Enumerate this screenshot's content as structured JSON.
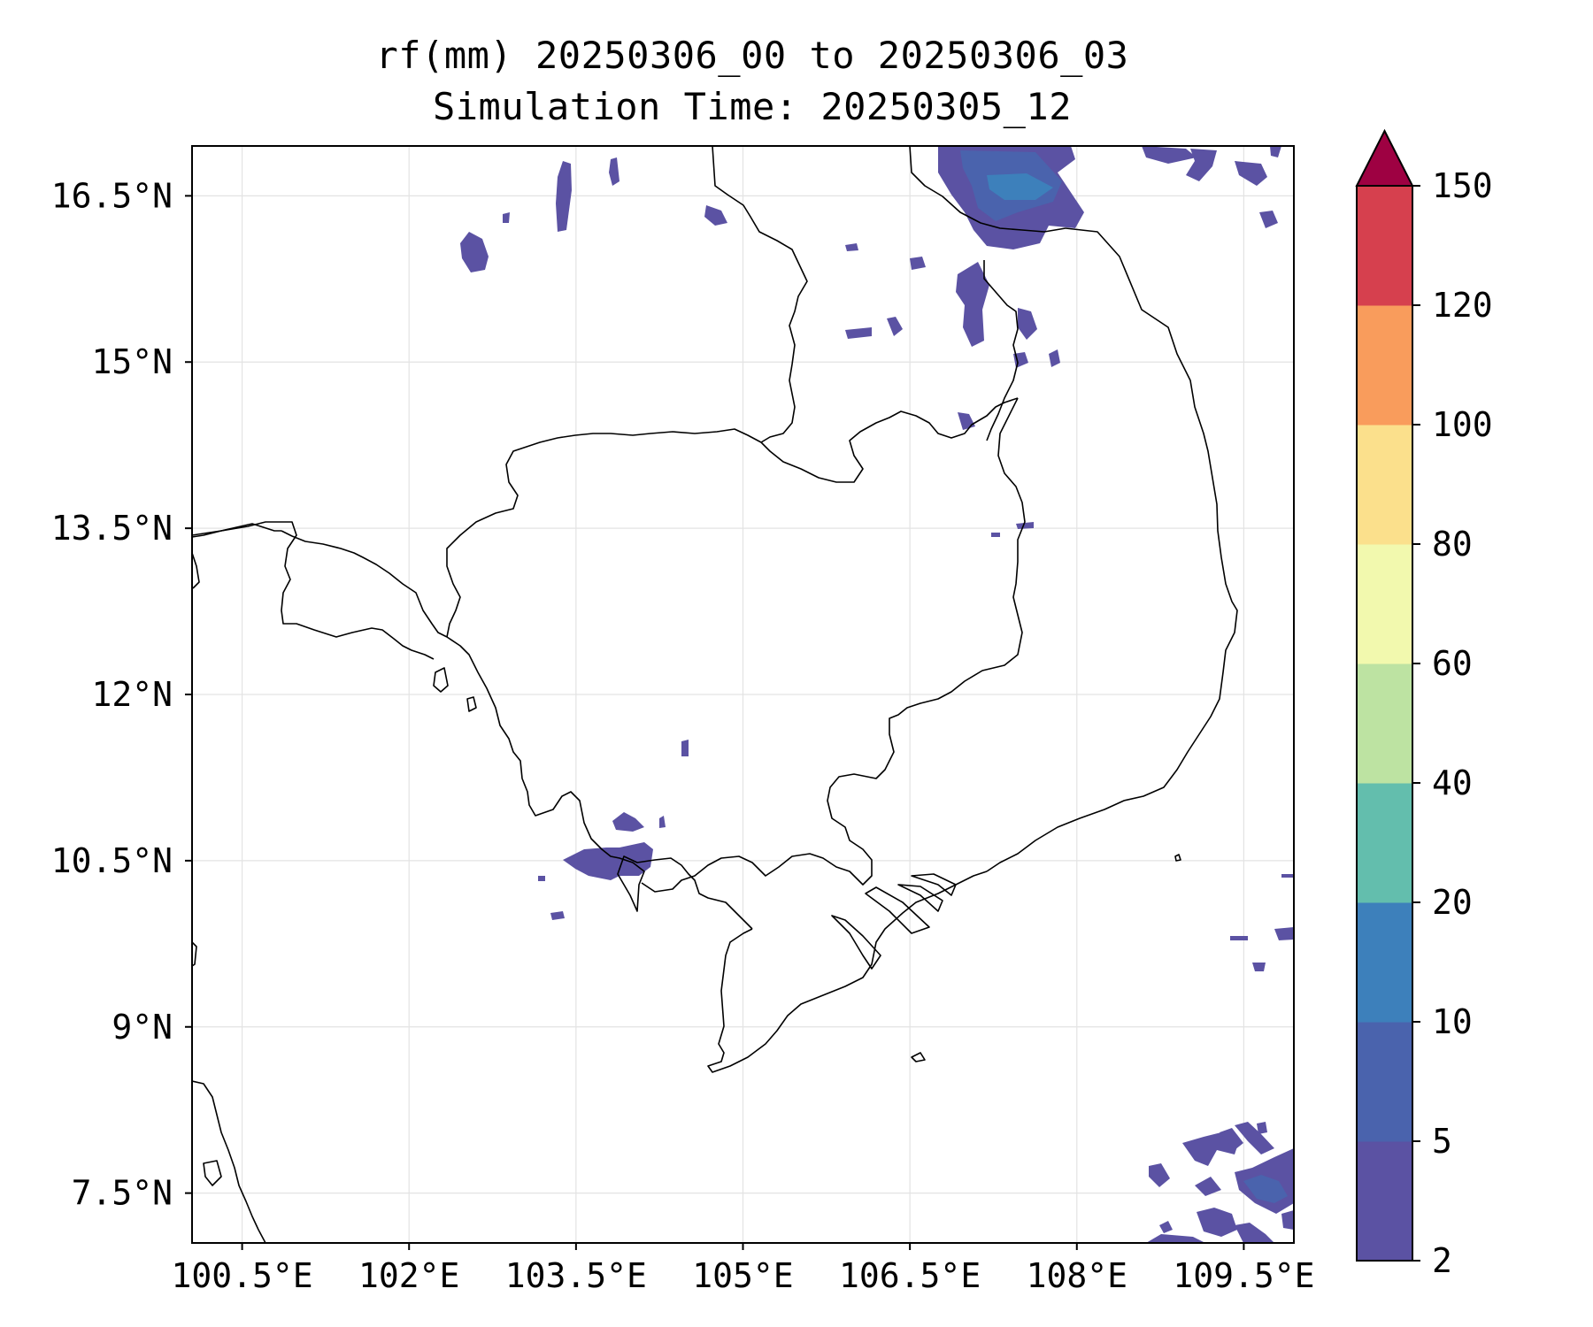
{
  "title": {
    "line1": "rf(mm) 20250306_00 to 20250306_03",
    "line2": "Simulation Time: 20250305_12"
  },
  "map": {
    "lon_range": [
      100.05,
      109.95
    ],
    "lat_range": [
      7.05,
      16.95
    ],
    "lon_ticks": [
      100.5,
      102,
      103.5,
      105,
      106.5,
      108,
      109.5
    ],
    "lat_ticks": [
      7.5,
      9,
      10.5,
      12,
      13.5,
      15,
      16.5
    ],
    "lon_tick_labels": [
      "100.5°E",
      "102°E",
      "103.5°E",
      "105°E",
      "106.5°E",
      "108°E",
      "109.5°E"
    ],
    "lat_tick_labels": [
      "7.5°N",
      "9°N",
      "10.5°N",
      "12°N",
      "13.5°N",
      "15°N",
      "16.5°N"
    ],
    "gridlines": true
  },
  "colorbar": {
    "levels": [
      2,
      5,
      10,
      20,
      40,
      60,
      80,
      100,
      120,
      150
    ],
    "tick_labels": [
      "2",
      "5",
      "10",
      "20",
      "40",
      "60",
      "80",
      "100",
      "120",
      "150"
    ],
    "colors": [
      "#5b52a3",
      "#4a63ad",
      "#3d80bb",
      "#63bead",
      "#bde3a2",
      "#f2f9ae",
      "#fbe08c",
      "#f99c5c",
      "#d6404e"
    ],
    "extend_color": "#9e0142",
    "extend": "max"
  },
  "rain_areas": [
    {
      "lon": 108.2,
      "lat": 16.45,
      "class": "2-10 mm"
    },
    {
      "lon": 108.0,
      "lat": 16.6,
      "class": "10-20 mm"
    },
    {
      "lon": 103.9,
      "lat": 10.6,
      "class": "2-5 mm"
    },
    {
      "lon": 109.4,
      "lat": 7.6,
      "class": "2-5 mm"
    }
  ]
}
